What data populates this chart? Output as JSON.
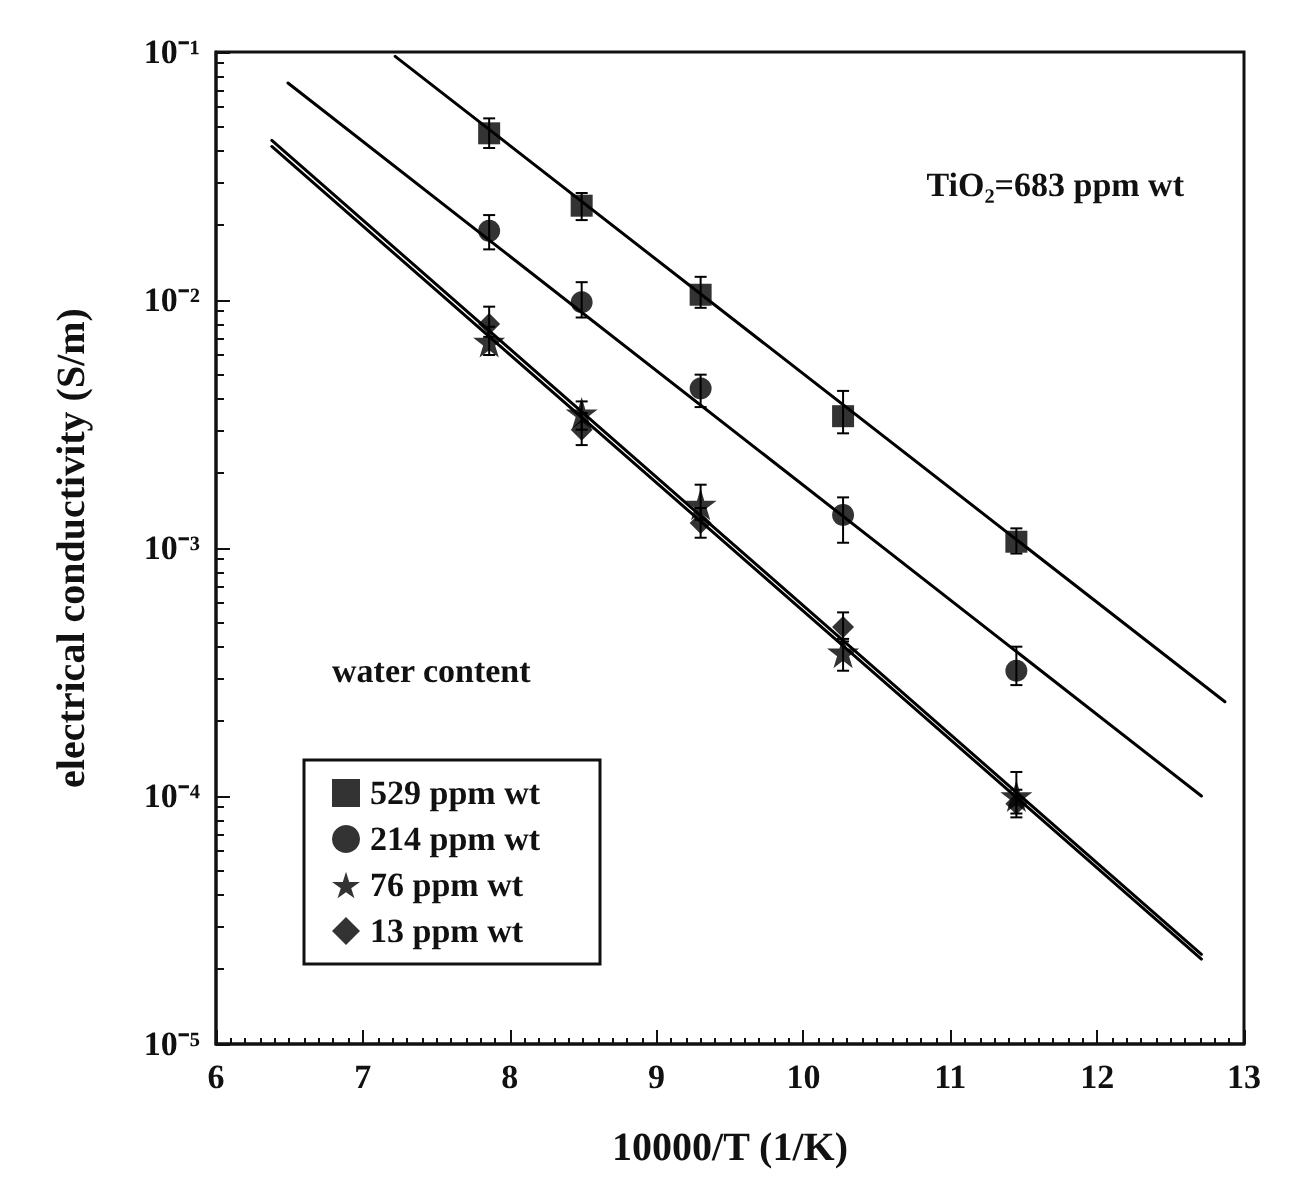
{
  "chart_data": {
    "type": "scatter",
    "xlabel": "10000/T (1/K)",
    "ylabel": "electrical conductivity (S/m)",
    "legend_title": "water content",
    "annotations": [
      "TiO₂=683 ppm wt"
    ],
    "x": [
      7.86,
      8.49,
      9.3,
      10.27,
      11.45
    ],
    "series": [
      {
        "name": "529 ppm wt",
        "color": "#000000",
        "marker": "square",
        "values": [
          0.047,
          0.024,
          0.0105,
          0.0034,
          0.00106
        ],
        "errors": [
          [
            0.041,
            0.054
          ],
          [
            0.021,
            0.027
          ],
          [
            0.0093,
            0.0124
          ],
          [
            0.0029,
            0.0043
          ],
          [
            0.00095,
            0.0012
          ]
        ]
      },
      {
        "name": "214 ppm wt",
        "color": "#000000",
        "marker": "circle",
        "values": [
          0.019,
          0.0098,
          0.0044,
          0.00136,
          0.00032
        ],
        "errors": [
          [
            0.016,
            0.022
          ],
          [
            0.0085,
            0.0118
          ],
          [
            0.0037,
            0.005
          ],
          [
            0.00105,
            0.0016
          ],
          [
            0.00028,
            0.0004
          ]
        ]
      },
      {
        "name": "76 ppm wt",
        "color": "#000000",
        "marker": "star",
        "values": [
          0.0068,
          0.0035,
          0.0015,
          0.00038,
          0.0001
        ],
        "errors": [
          [
            0.006,
            0.0078
          ],
          [
            0.003,
            0.0039
          ],
          [
            0.0013,
            0.0018
          ],
          [
            0.00032,
            0.00043
          ],
          [
            8.5e-05,
            0.000125
          ]
        ]
      },
      {
        "name": "13 ppm wt",
        "color": "#000000",
        "marker": "diamond",
        "values": [
          0.008,
          0.003,
          0.00126,
          0.00048,
          9.3e-05
        ],
        "errors": [
          [
            0.0071,
            0.0094
          ],
          [
            0.0026,
            0.0035
          ],
          [
            0.0011,
            0.00145
          ],
          [
            0.00042,
            0.00055
          ],
          [
            8.2e-05,
            0.000106
          ]
        ]
      },
      {
        "type": "line",
        "color": "#000000",
        "marker": "none",
        "x": [
          7.22,
          12.87
        ],
        "values": [
          0.096,
          0.00024
        ]
      },
      {
        "type": "line",
        "color": "#000000",
        "marker": "none",
        "x": [
          6.49,
          12.71
        ],
        "values": [
          0.075,
          0.0001
        ]
      },
      {
        "type": "line",
        "color": "#000000",
        "marker": "none",
        "x": [
          6.38,
          12.71
        ],
        "values": [
          0.044,
          2.3e-05
        ]
      },
      {
        "type": "line",
        "color": "#000000",
        "marker": "none",
        "x": [
          6.38,
          12.71
        ],
        "values": [
          0.0416,
          2.2e-05
        ]
      }
    ],
    "log": "y",
    "xlim": [
      6,
      13
    ],
    "xticks": [
      6,
      7,
      8,
      9,
      10,
      11,
      12,
      13
    ],
    "ylim": [
      1e-05,
      0.1
    ],
    "yticks": [
      {
        "value": 1e-05,
        "label": "10⁻⁵"
      },
      {
        "value": 0.0001,
        "label": "10⁻⁴"
      },
      {
        "value": 0.001,
        "label": "10⁻³"
      },
      {
        "value": 0.01,
        "label": "10⁻²"
      },
      {
        "value": 0.1,
        "label": "10⁻¹"
      }
    ],
    "grid": false,
    "legend": "bottom left",
    "line_style": "solid"
  }
}
